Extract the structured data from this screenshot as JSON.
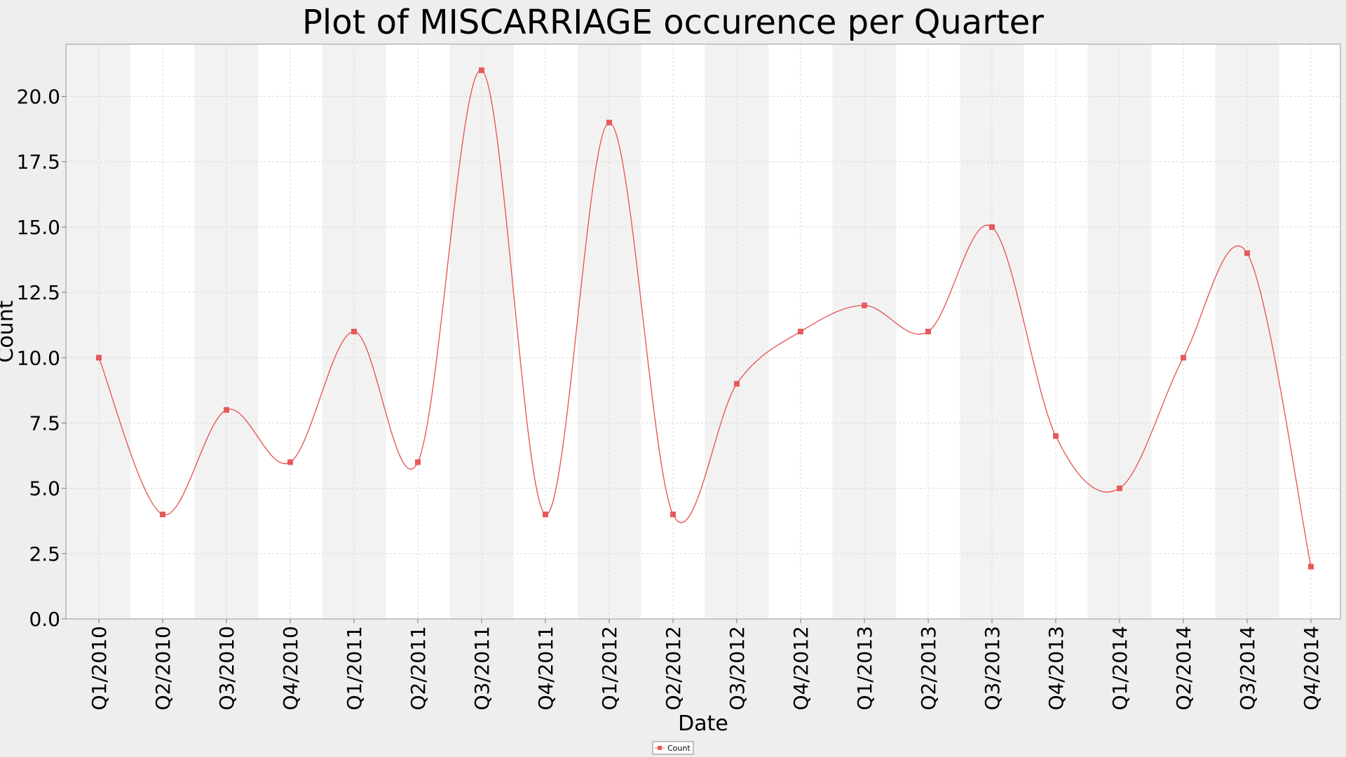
{
  "chart_data": {
    "type": "line",
    "title": "Plot of MISCARRIAGE occurence per Quarter",
    "xlabel": "Date",
    "ylabel": "Count",
    "categories": [
      "Q1/2010",
      "Q2/2010",
      "Q3/2010",
      "Q4/2010",
      "Q1/2011",
      "Q2/2011",
      "Q3/2011",
      "Q4/2011",
      "Q1/2012",
      "Q2/2012",
      "Q3/2012",
      "Q4/2012",
      "Q1/2013",
      "Q2/2013",
      "Q3/2013",
      "Q4/2013",
      "Q1/2014",
      "Q2/2014",
      "Q3/2014",
      "Q4/2014"
    ],
    "series": [
      {
        "name": "Count",
        "values": [
          10,
          4,
          8,
          6,
          11,
          6,
          21,
          4,
          19,
          4,
          9,
          11,
          12,
          11,
          15,
          7,
          5,
          10,
          14,
          2
        ]
      }
    ],
    "ylim": [
      0,
      22
    ],
    "yticks": [
      "0.0",
      "2.5",
      "5.0",
      "7.5",
      "10.0",
      "12.5",
      "15.0",
      "17.5",
      "20.0"
    ],
    "grid": true,
    "legend_placement": "bottom-center",
    "colors": {
      "series": "#e8595a",
      "band_light": "#ffffff",
      "band_dark": "#f2f2f2",
      "page_background": "#eeeeee",
      "grid": "#d8d8d8"
    }
  }
}
